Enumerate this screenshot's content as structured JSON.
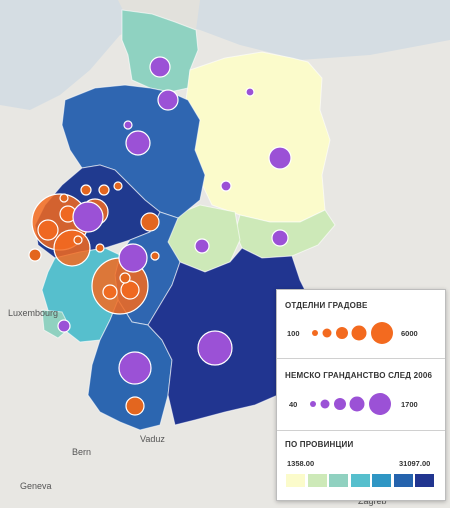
{
  "map": {
    "labels": {
      "luxembourg": "Luxembourg",
      "vaduz": "Vaduz",
      "bern": "Bern",
      "geneva": "Geneva",
      "zagreb": "Zagreb"
    }
  },
  "legend": {
    "cities": {
      "title": "ОТДЕЛНИ ГРАДОВЕ",
      "min": "100",
      "max": "6000"
    },
    "citizenship": {
      "title": "НЕМСКО ГРАНДАНСТВО СЛЕД 2006",
      "min": "40",
      "max": "1700"
    },
    "provinces": {
      "title": "ПО ПРОВИНЦИИ",
      "min": "1358.00",
      "max": "31097.00",
      "colors": [
        "#fbfbcb",
        "#cde9b8",
        "#90d1c0",
        "#56bfcd",
        "#2f96c4",
        "#2563ad",
        "#213590"
      ]
    },
    "colors": {
      "orange": "#f36a1f",
      "purple": "#9b51d6"
    }
  }
}
